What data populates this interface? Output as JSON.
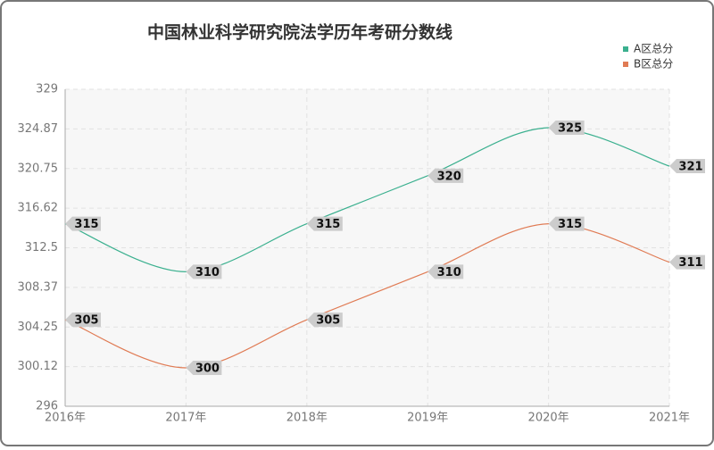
{
  "chart_data": {
    "type": "line",
    "title": "中国林业科学研究院法学历年考研分数线",
    "categories": [
      "2016年",
      "2017年",
      "2018年",
      "2019年",
      "2020年",
      "2021年"
    ],
    "series": [
      {
        "name": "A区总分",
        "color": "#3bb08f",
        "values": [
          315,
          310,
          315,
          320,
          325,
          321
        ]
      },
      {
        "name": "B区总分",
        "color": "#e07b54",
        "values": [
          305,
          300,
          305,
          310,
          315,
          311
        ]
      }
    ],
    "ylim": [
      296,
      329
    ],
    "yticks": [
      296,
      300.12,
      304.25,
      308.37,
      312.5,
      316.62,
      320.75,
      324.87,
      329
    ],
    "grid": true,
    "smooth": true,
    "legend": "top-right"
  }
}
